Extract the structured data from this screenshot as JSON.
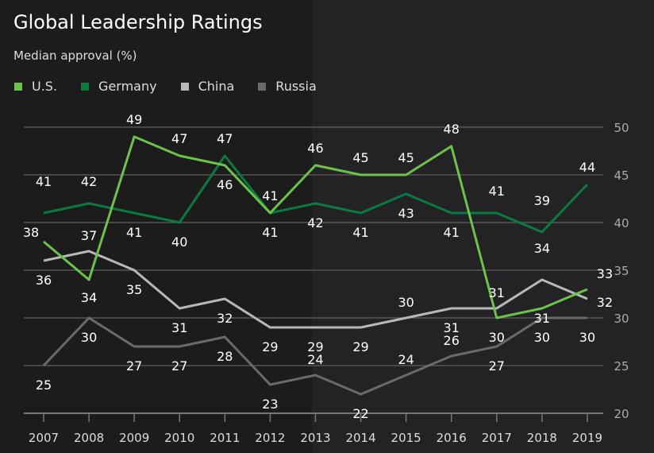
{
  "title": "Global Leadership Ratings",
  "subtitle": "Median approval (%)",
  "legend": [
    {
      "name": "U.S.",
      "color": "#6cc24a"
    },
    {
      "name": "Germany",
      "color": "#0b7a3e"
    },
    {
      "name": "China",
      "color": "#b8b8b8"
    },
    {
      "name": "Russia",
      "color": "#6a6a6a"
    }
  ],
  "chart_data": {
    "type": "line",
    "title": "Global Leadership Ratings",
    "subtitle": "Median approval (%)",
    "x": [
      "2007",
      "2008",
      "2009",
      "2010",
      "2011",
      "2012",
      "2013",
      "2014",
      "2015",
      "2016",
      "2017",
      "2018",
      "2019"
    ],
    "yticks": [
      20,
      25,
      30,
      35,
      40,
      45,
      50
    ],
    "ylim": [
      20,
      50
    ],
    "y_axis_side": "right",
    "grid": true,
    "legend_position": "top-left",
    "series": [
      {
        "name": "U.S.",
        "color": "#6cc24a",
        "values": [
          38,
          34,
          49,
          47,
          46,
          41,
          46,
          45,
          45,
          48,
          30,
          31,
          33
        ]
      },
      {
        "name": "Germany",
        "color": "#0b7a3e",
        "values": [
          41,
          42,
          41,
          40,
          47,
          41,
          42,
          41,
          43,
          41,
          41,
          39,
          44
        ]
      },
      {
        "name": "China",
        "color": "#b8b8b8",
        "values": [
          36,
          37,
          35,
          31,
          32,
          29,
          29,
          29,
          30,
          31,
          31,
          34,
          32
        ]
      },
      {
        "name": "Russia",
        "color": "#6a6a6a",
        "values": [
          25,
          30,
          27,
          27,
          28,
          23,
          24,
          22,
          24,
          26,
          27,
          30,
          30
        ]
      }
    ]
  }
}
